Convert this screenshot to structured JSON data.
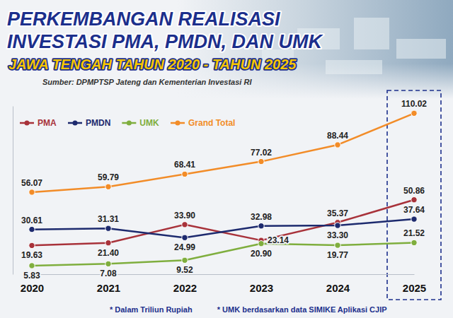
{
  "chart_data": {
    "type": "line",
    "title": "PERKEMBANGAN REALISASI INVESTASI PMA, PMDN, DAN UMK",
    "subtitle": "JAWA TENGAH TAHUN 2020 - TAHUN 2025",
    "annotations": [
      "Sumber: DPMPTSP Jateng dan Kementerian Investasi RI",
      "* Dalam Triliun Rupiah",
      "* UMK berdasarkan data SIMIKE Aplikasi CJIP"
    ],
    "categories": [
      "2020",
      "2021",
      "2022",
      "2023",
      "2024",
      "2025"
    ],
    "series": [
      {
        "name": "PMA",
        "color": "#a8323a",
        "values": [
          19.63,
          21.4,
          33.9,
          23.14,
          35.37,
          50.86
        ],
        "value_labels": [
          "19.63",
          "21.40",
          "33.90",
          "23.14",
          "35.37",
          "50.86"
        ]
      },
      {
        "name": "PMDN",
        "color": "#1d2a6e",
        "values": [
          30.61,
          31.31,
          24.99,
          32.98,
          33.3,
          37.64
        ],
        "value_labels": [
          "30.61",
          "31.31",
          "24.99",
          "32.98",
          "33.30",
          "37.64"
        ]
      },
      {
        "name": "UMK",
        "color": "#7fae3e",
        "values": [
          5.83,
          7.08,
          9.52,
          20.9,
          19.77,
          21.52
        ],
        "value_labels": [
          "5.83",
          "7.08",
          "9.52",
          "20.90",
          "19.77",
          "21.52"
        ]
      },
      {
        "name": "Grand Total",
        "color": "#f28c28",
        "values": [
          56.07,
          59.79,
          68.41,
          77.02,
          88.44,
          110.02
        ],
        "value_labels": [
          "56.07",
          "59.79",
          "68.41",
          "77.02",
          "88.44",
          "110.02"
        ]
      }
    ],
    "ylim": [
      0,
      115
    ],
    "tick_labels": "x",
    "grid": false,
    "legend": "top-left",
    "data_labels": true,
    "marker": "circle",
    "line_style": "solid"
  }
}
